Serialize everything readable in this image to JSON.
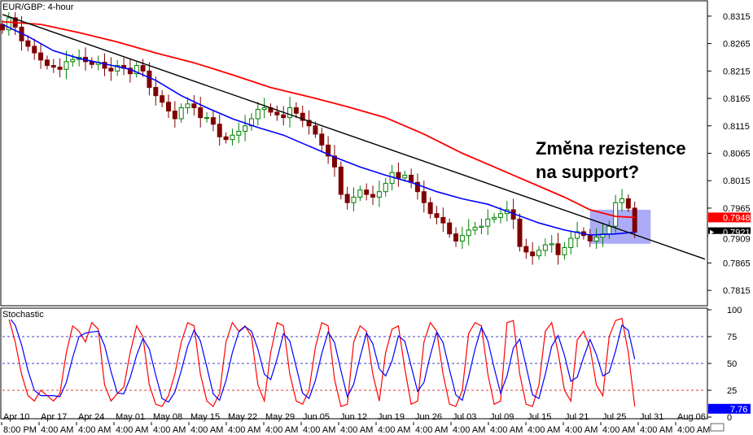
{
  "chart_data": {
    "type": "candlestick",
    "title": "EUR/GBP: 4-hour",
    "price_panel": {
      "ylim": [
        0.779,
        0.834
      ],
      "y_ticks": [
        "0.8315",
        "0.8265",
        "0.8215",
        "0.8165",
        "0.8115",
        "0.8065",
        "0.8015",
        "0.7965",
        "0.7915",
        "0.7865",
        "0.7815"
      ],
      "price_tags": [
        {
          "label": "0.7948",
          "value": 0.7948,
          "color": "#ff0000",
          "text_color": "#ffffff"
        },
        {
          "label": "0.7921",
          "value": 0.7921,
          "color": "#000000",
          "text_color": "#ffffff"
        },
        {
          "label": "0.7909",
          "value": 0.7909,
          "color": "#ffffff",
          "text_color": "#000000"
        }
      ],
      "ma_fast_color": "#0000ff",
      "ma_slow_color": "#ff0000",
      "ma_fast": [
        [
          0,
          0.83
        ],
        [
          4,
          0.8278
        ],
        [
          8,
          0.8252
        ],
        [
          12,
          0.8238
        ],
        [
          16,
          0.8228
        ],
        [
          20,
          0.8218
        ],
        [
          24,
          0.8198
        ],
        [
          28,
          0.817
        ],
        [
          32,
          0.8148
        ],
        [
          36,
          0.8128
        ],
        [
          40,
          0.8112
        ],
        [
          44,
          0.8098
        ],
        [
          48,
          0.8078
        ],
        [
          52,
          0.8058
        ],
        [
          56,
          0.804
        ],
        [
          60,
          0.8025
        ],
        [
          64,
          0.8012
        ],
        [
          68,
          0.7995
        ],
        [
          72,
          0.7982
        ],
        [
          76,
          0.7972
        ],
        [
          80,
          0.7955
        ],
        [
          84,
          0.7938
        ],
        [
          88,
          0.7925
        ],
        [
          92,
          0.7916
        ],
        [
          96,
          0.7918
        ],
        [
          99,
          0.7921
        ]
      ],
      "ma_slow": [
        [
          0,
          0.8305
        ],
        [
          6,
          0.83
        ],
        [
          12,
          0.8285
        ],
        [
          18,
          0.8268
        ],
        [
          24,
          0.8248
        ],
        [
          30,
          0.823
        ],
        [
          36,
          0.8208
        ],
        [
          42,
          0.8185
        ],
        [
          48,
          0.8168
        ],
        [
          54,
          0.815
        ],
        [
          60,
          0.813
        ],
        [
          66,
          0.81
        ],
        [
          72,
          0.8065
        ],
        [
          78,
          0.8035
        ],
        [
          84,
          0.8005
        ],
        [
          88,
          0.7985
        ],
        [
          92,
          0.7962
        ],
        [
          96,
          0.795
        ],
        [
          99,
          0.7948
        ]
      ],
      "trendline": {
        "color": "#000000",
        "points": [
          [
            0,
            0.8318
          ],
          [
            110,
            0.7872
          ]
        ]
      },
      "highlight_box": {
        "x0": 92,
        "x1": 101.5,
        "y0": 0.79,
        "y1": 0.7962,
        "color": "#8f8ff5"
      },
      "candle_up_color": "#008000",
      "candle_down_color": "#800000",
      "close_series": [
        0.829,
        0.8312,
        0.8295,
        0.827,
        0.826,
        0.8248,
        0.8235,
        0.8225,
        0.8222,
        0.8218,
        0.8232,
        0.8236,
        0.824,
        0.8232,
        0.8227,
        0.8231,
        0.822,
        0.8215,
        0.8225,
        0.822,
        0.821,
        0.8225,
        0.8215,
        0.8185,
        0.817,
        0.8158,
        0.8142,
        0.8128,
        0.8148,
        0.8155,
        0.8148,
        0.813,
        0.813,
        0.8118,
        0.8095,
        0.809,
        0.8098,
        0.8105,
        0.8115,
        0.8128,
        0.8145,
        0.8148,
        0.814,
        0.8135,
        0.813,
        0.8148,
        0.8138,
        0.8125,
        0.8115,
        0.81,
        0.808,
        0.806,
        0.804,
        0.799,
        0.7975,
        0.7985,
        0.7998,
        0.799,
        0.7985,
        0.7995,
        0.801,
        0.803,
        0.802,
        0.8025,
        0.8012,
        0.7995,
        0.7975,
        0.7955,
        0.7948,
        0.7938,
        0.7918,
        0.7905,
        0.7915,
        0.7925,
        0.793,
        0.7932,
        0.7945,
        0.7948,
        0.7955,
        0.7962,
        0.7945,
        0.7895,
        0.7885,
        0.7878,
        0.7888,
        0.7898,
        0.79,
        0.788,
        0.7893,
        0.791,
        0.7922,
        0.7915,
        0.7905,
        0.7912,
        0.7918,
        0.7932,
        0.7975,
        0.7982,
        0.7965,
        0.7921
      ]
    },
    "stochastic_panel": {
      "title": "Stochastic",
      "ylim": [
        0,
        100
      ],
      "y_ticks": [
        "100",
        "75",
        "50",
        "25",
        "0"
      ],
      "levels": [
        75,
        50,
        25
      ],
      "value_tag": {
        "label": "7.76",
        "value": 7.76,
        "color": "#0000ff",
        "text_color": "#ffffff"
      },
      "k_color": "#ff0000",
      "d_color": "#0000ff",
      "k_series": [
        95,
        92,
        70,
        40,
        20,
        15,
        25,
        20,
        15,
        22,
        60,
        85,
        80,
        70,
        88,
        82,
        30,
        15,
        22,
        28,
        60,
        85,
        75,
        30,
        12,
        10,
        20,
        40,
        70,
        88,
        85,
        40,
        15,
        10,
        22,
        70,
        88,
        80,
        85,
        75,
        30,
        15,
        60,
        88,
        85,
        40,
        15,
        12,
        25,
        65,
        88,
        85,
        35,
        10,
        12,
        70,
        85,
        80,
        40,
        15,
        60,
        82,
        85,
        45,
        12,
        15,
        70,
        88,
        80,
        40,
        12,
        10,
        25,
        78,
        88,
        85,
        40,
        12,
        15,
        88,
        90,
        40,
        12,
        10,
        30,
        80,
        88,
        60,
        25,
        15,
        72,
        80,
        65,
        30,
        20,
        75,
        90,
        92,
        60,
        10
      ]
    },
    "x_ticks": [
      "Apr 10",
      "Apr 17",
      "Apr 24",
      "May 01",
      "May 08",
      "May 15",
      "May 22",
      "May 29",
      "Jun 05",
      "Jun 12",
      "Jun 19",
      "Jun 26",
      "Jul 03",
      "Jul 09",
      "Jul 15",
      "Jul 21",
      "Jul 25",
      "Jul 31",
      "Aug 06"
    ],
    "time_ticks": [
      "8:00 PM",
      "4:00 AM",
      "4:00 AM",
      "4:00 AM",
      "4:00 AM",
      "4:00 AM",
      "4:00 AM",
      "4:00 AM",
      "4:00 AM",
      "4:00 AM",
      "4:00 AM",
      "4:00 AM",
      "4:00 AM",
      "4:00 AM",
      "4:00 AM",
      "4:00 AM",
      "4:00 AM",
      "4:00 AM",
      "4:00 AM"
    ],
    "annotation": [
      "Změna rezistence",
      "na support?"
    ],
    "x_range": [
      0,
      110
    ]
  }
}
